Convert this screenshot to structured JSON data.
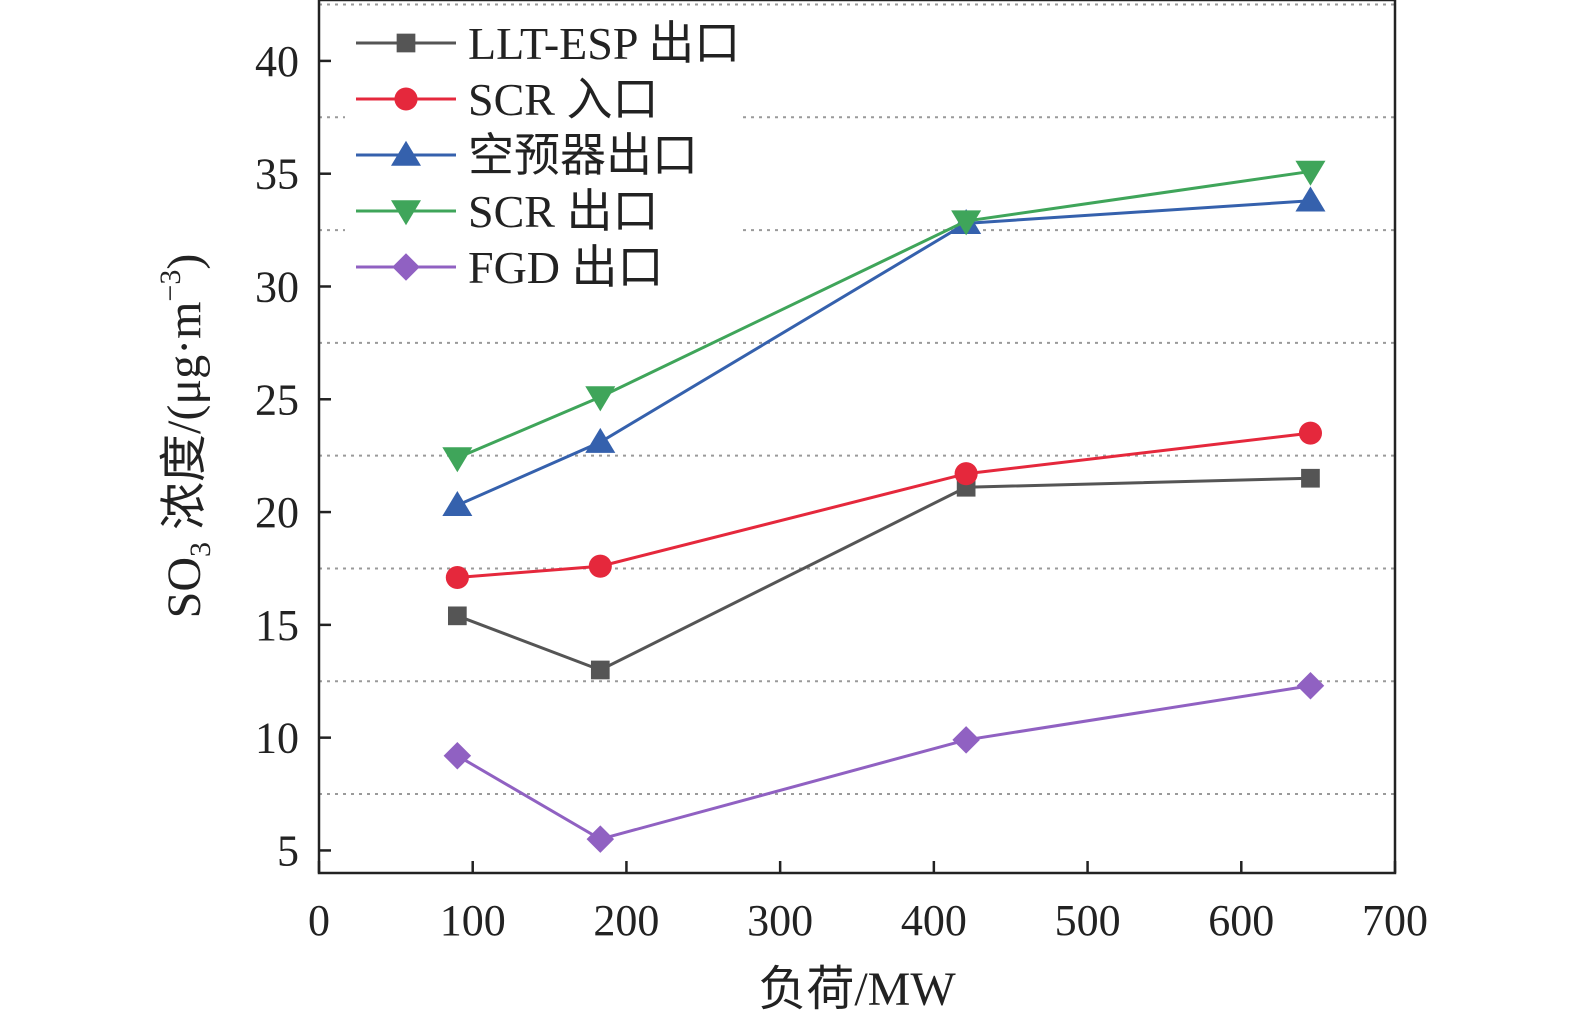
{
  "chart_data": {
    "type": "line",
    "xlabel": "负荷/MW",
    "ylabel": {
      "prefix": "SO",
      "sub": "3",
      "main": " 浓度/(μg·m",
      "sup": "−3",
      "suffix": ")"
    },
    "xlim": [
      0,
      700
    ],
    "ylim": [
      4,
      42.7
    ],
    "x_ticks": [
      "0",
      "100",
      "200",
      "300",
      "400",
      "500",
      "600",
      "700"
    ],
    "y_ticks": [
      "5",
      "10",
      "15",
      "20",
      "25",
      "30",
      "35",
      "40"
    ],
    "grid": "horizontal dotted lines at 7.5, 12.5, 17.5, 22.5, 27.5, 32.5, 37.5, 42.5",
    "legend_position": "top-left",
    "x": [
      90,
      183,
      421,
      645
    ],
    "series": [
      {
        "name": "LLT-ESP 出口",
        "color": "#555555",
        "marker": "square",
        "values": [
          15.4,
          13.0,
          21.1,
          21.5
        ]
      },
      {
        "name": "SCR 入口",
        "color": "#e5283c",
        "marker": "circle",
        "values": [
          17.1,
          17.6,
          21.7,
          23.5
        ]
      },
      {
        "name": "空预器出口",
        "color": "#3561ad",
        "marker": "triangle-up",
        "values": [
          20.3,
          23.1,
          32.8,
          33.8
        ]
      },
      {
        "name": "SCR 出口",
        "color": "#3fa55a",
        "marker": "triangle-down",
        "values": [
          22.4,
          25.1,
          32.9,
          35.1
        ]
      },
      {
        "name": "FGD 出口",
        "color": "#9061c2",
        "marker": "diamond",
        "values": [
          9.2,
          5.5,
          9.9,
          12.3
        ]
      }
    ]
  }
}
